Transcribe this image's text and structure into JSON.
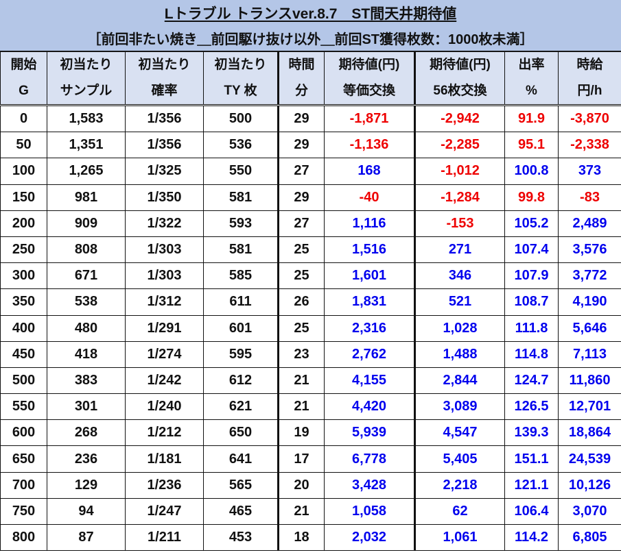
{
  "header": {
    "title": "Lトラブル トランスver.8.7　ST間天井期待値",
    "subtitle": "［前回非たい焼き＿前回駆け抜け以外＿前回ST獲得枚数：1000枚未満］"
  },
  "columns": [
    {
      "line1": "開始",
      "line2": "G"
    },
    {
      "line1": "初当たり",
      "line2": "サンプル"
    },
    {
      "line1": "初当たり",
      "line2": "確率"
    },
    {
      "line1": "初当たり",
      "line2": "TY 枚"
    },
    {
      "line1": "時間",
      "line2": "分"
    },
    {
      "line1": "期待値(円)",
      "line2": "等価交換"
    },
    {
      "line1": "期待値(円)",
      "line2": "56枚交換"
    },
    {
      "line1": "出率",
      "line2": "%"
    },
    {
      "line1": "時給",
      "line2": "円/h"
    }
  ],
  "colors": {
    "title_bg": "#b4c6e7",
    "header_bg": "#d9e1f2",
    "positive": "#0000ee",
    "negative": "#ee0000"
  },
  "rows": [
    {
      "start_g": "0",
      "sample": "1,583",
      "prob": "1/356",
      "ty": "500",
      "minutes": "29",
      "ev_equal": "-1,871",
      "ev_56": "-2,942",
      "payout": "91.9",
      "hourly": "-3,870"
    },
    {
      "start_g": "50",
      "sample": "1,351",
      "prob": "1/356",
      "ty": "536",
      "minutes": "29",
      "ev_equal": "-1,136",
      "ev_56": "-2,285",
      "payout": "95.1",
      "hourly": "-2,338"
    },
    {
      "start_g": "100",
      "sample": "1,265",
      "prob": "1/325",
      "ty": "550",
      "minutes": "27",
      "ev_equal": "168",
      "ev_56": "-1,012",
      "payout": "100.8",
      "hourly": "373"
    },
    {
      "start_g": "150",
      "sample": "981",
      "prob": "1/350",
      "ty": "581",
      "minutes": "29",
      "ev_equal": "-40",
      "ev_56": "-1,284",
      "payout": "99.8",
      "hourly": "-83"
    },
    {
      "start_g": "200",
      "sample": "909",
      "prob": "1/322",
      "ty": "593",
      "minutes": "27",
      "ev_equal": "1,116",
      "ev_56": "-153",
      "payout": "105.2",
      "hourly": "2,489"
    },
    {
      "start_g": "250",
      "sample": "808",
      "prob": "1/303",
      "ty": "581",
      "minutes": "25",
      "ev_equal": "1,516",
      "ev_56": "271",
      "payout": "107.4",
      "hourly": "3,576"
    },
    {
      "start_g": "300",
      "sample": "671",
      "prob": "1/303",
      "ty": "585",
      "minutes": "25",
      "ev_equal": "1,601",
      "ev_56": "346",
      "payout": "107.9",
      "hourly": "3,772"
    },
    {
      "start_g": "350",
      "sample": "538",
      "prob": "1/312",
      "ty": "611",
      "minutes": "26",
      "ev_equal": "1,831",
      "ev_56": "521",
      "payout": "108.7",
      "hourly": "4,190"
    },
    {
      "start_g": "400",
      "sample": "480",
      "prob": "1/291",
      "ty": "601",
      "minutes": "25",
      "ev_equal": "2,316",
      "ev_56": "1,028",
      "payout": "111.8",
      "hourly": "5,646"
    },
    {
      "start_g": "450",
      "sample": "418",
      "prob": "1/274",
      "ty": "595",
      "minutes": "23",
      "ev_equal": "2,762",
      "ev_56": "1,488",
      "payout": "114.8",
      "hourly": "7,113"
    },
    {
      "start_g": "500",
      "sample": "383",
      "prob": "1/242",
      "ty": "612",
      "minutes": "21",
      "ev_equal": "4,155",
      "ev_56": "2,844",
      "payout": "124.7",
      "hourly": "11,860"
    },
    {
      "start_g": "550",
      "sample": "301",
      "prob": "1/240",
      "ty": "621",
      "minutes": "21",
      "ev_equal": "4,420",
      "ev_56": "3,089",
      "payout": "126.5",
      "hourly": "12,701"
    },
    {
      "start_g": "600",
      "sample": "268",
      "prob": "1/212",
      "ty": "650",
      "minutes": "19",
      "ev_equal": "5,939",
      "ev_56": "4,547",
      "payout": "139.3",
      "hourly": "18,864"
    },
    {
      "start_g": "650",
      "sample": "236",
      "prob": "1/181",
      "ty": "641",
      "minutes": "17",
      "ev_equal": "6,778",
      "ev_56": "5,405",
      "payout": "151.1",
      "hourly": "24,539"
    },
    {
      "start_g": "700",
      "sample": "129",
      "prob": "1/236",
      "ty": "565",
      "minutes": "20",
      "ev_equal": "3,428",
      "ev_56": "2,218",
      "payout": "121.1",
      "hourly": "10,126"
    },
    {
      "start_g": "750",
      "sample": "94",
      "prob": "1/247",
      "ty": "465",
      "minutes": "21",
      "ev_equal": "1,058",
      "ev_56": "62",
      "payout": "106.4",
      "hourly": "3,070"
    },
    {
      "start_g": "800",
      "sample": "87",
      "prob": "1/211",
      "ty": "453",
      "minutes": "18",
      "ev_equal": "2,032",
      "ev_56": "1,061",
      "payout": "114.2",
      "hourly": "6,805"
    }
  ]
}
